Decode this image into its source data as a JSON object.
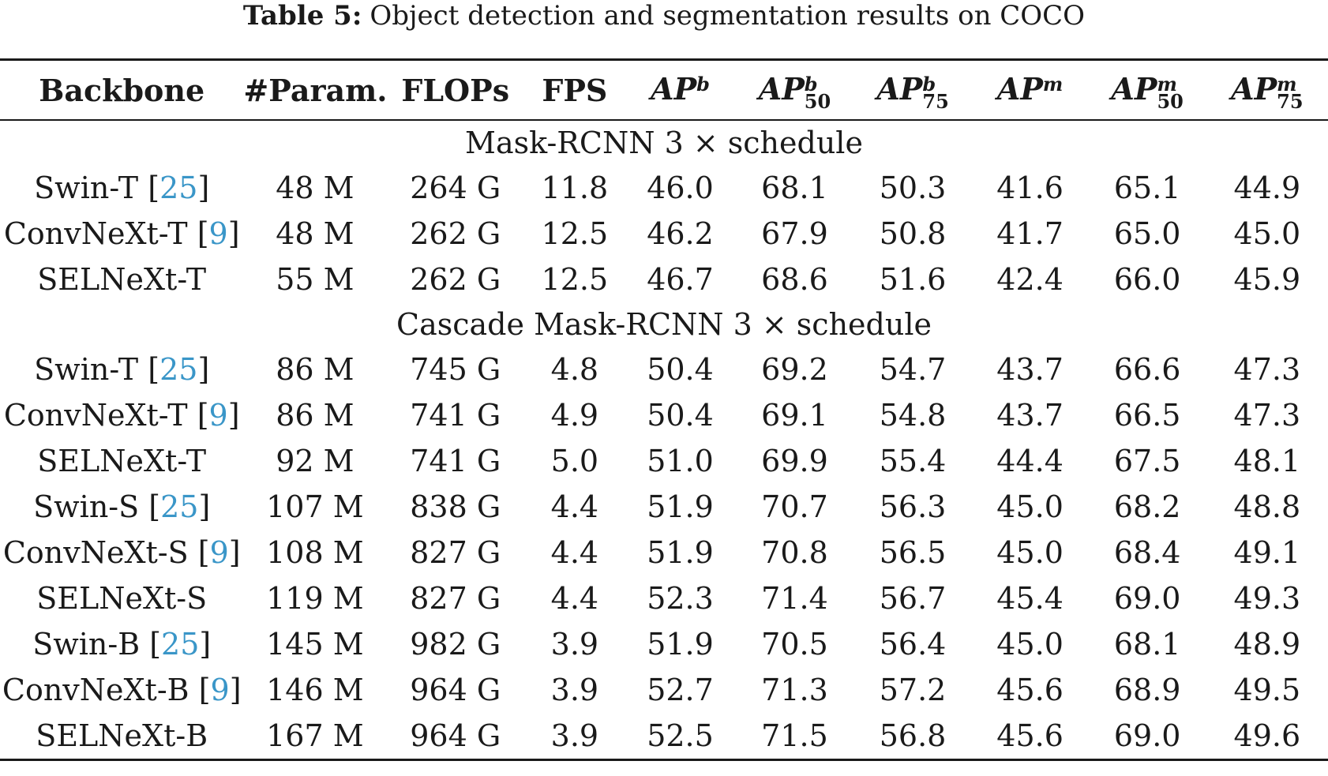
{
  "caption": {
    "label": "Table 5:",
    "text": "Object detection and segmentation results on COCO"
  },
  "header": {
    "backbone": "Backbone",
    "params": "#Param.",
    "flops": "FLOPs",
    "fps": "FPS",
    "ap_b": {
      "base": "AP",
      "sup": "b",
      "sub": ""
    },
    "ap_b50": {
      "base": "AP",
      "sup": "b",
      "sub": "50"
    },
    "ap_b75": {
      "base": "AP",
      "sup": "b",
      "sub": "75"
    },
    "ap_m": {
      "base": "AP",
      "sup": "m",
      "sub": ""
    },
    "ap_m50": {
      "base": "AP",
      "sup": "m",
      "sub": "50"
    },
    "ap_m75": {
      "base": "AP",
      "sup": "m",
      "sub": "75"
    }
  },
  "sections": [
    {
      "title": "Mask-RCNN 3 × schedule",
      "rows": [
        {
          "name": "Swin-T",
          "ref": "25",
          "params": "48 M",
          "flops": "264 G",
          "fps": "11.8",
          "ap_b": "46.0",
          "ap_b50": "68.1",
          "ap_b75": "50.3",
          "ap_m": "41.6",
          "ap_m50": "65.1",
          "ap_m75": "44.9"
        },
        {
          "name": "ConvNeXt-T",
          "ref": "9",
          "params": "48 M",
          "flops": "262 G",
          "fps": "12.5",
          "ap_b": "46.2",
          "ap_b50": "67.9",
          "ap_b75": "50.8",
          "ap_m": "41.7",
          "ap_m50": "65.0",
          "ap_m75": "45.0"
        },
        {
          "name": "SELNeXt-T",
          "ref": "",
          "params": "55 M",
          "flops": "262 G",
          "fps": "12.5",
          "ap_b": "46.7",
          "ap_b50": "68.6",
          "ap_b75": "51.6",
          "ap_m": "42.4",
          "ap_m50": "66.0",
          "ap_m75": "45.9"
        }
      ]
    },
    {
      "title": "Cascade Mask-RCNN 3 × schedule",
      "rows": [
        {
          "name": "Swin-T",
          "ref": "25",
          "params": "86 M",
          "flops": "745 G",
          "fps": "4.8",
          "ap_b": "50.4",
          "ap_b50": "69.2",
          "ap_b75": "54.7",
          "ap_m": "43.7",
          "ap_m50": "66.6",
          "ap_m75": "47.3"
        },
        {
          "name": "ConvNeXt-T",
          "ref": "9",
          "params": "86 M",
          "flops": "741 G",
          "fps": "4.9",
          "ap_b": "50.4",
          "ap_b50": "69.1",
          "ap_b75": "54.8",
          "ap_m": "43.7",
          "ap_m50": "66.5",
          "ap_m75": "47.3"
        },
        {
          "name": "SELNeXt-T",
          "ref": "",
          "params": "92 M",
          "flops": "741 G",
          "fps": "5.0",
          "ap_b": "51.0",
          "ap_b50": "69.9",
          "ap_b75": "55.4",
          "ap_m": "44.4",
          "ap_m50": "67.5",
          "ap_m75": "48.1"
        },
        {
          "name": "Swin-S",
          "ref": "25",
          "params": "107 M",
          "flops": "838 G",
          "fps": "4.4",
          "ap_b": "51.9",
          "ap_b50": "70.7",
          "ap_b75": "56.3",
          "ap_m": "45.0",
          "ap_m50": "68.2",
          "ap_m75": "48.8"
        },
        {
          "name": "ConvNeXt-S",
          "ref": "9",
          "params": "108 M",
          "flops": "827 G",
          "fps": "4.4",
          "ap_b": "51.9",
          "ap_b50": "70.8",
          "ap_b75": "56.5",
          "ap_m": "45.0",
          "ap_m50": "68.4",
          "ap_m75": "49.1"
        },
        {
          "name": "SELNeXt-S",
          "ref": "",
          "params": "119 M",
          "flops": "827 G",
          "fps": "4.4",
          "ap_b": "52.3",
          "ap_b50": "71.4",
          "ap_b75": "56.7",
          "ap_m": "45.4",
          "ap_m50": "69.0",
          "ap_m75": "49.3"
        },
        {
          "name": "Swin-B",
          "ref": "25",
          "params": "145 M",
          "flops": "982 G",
          "fps": "3.9",
          "ap_b": "51.9",
          "ap_b50": "70.5",
          "ap_b75": "56.4",
          "ap_m": "45.0",
          "ap_m50": "68.1",
          "ap_m75": "48.9"
        },
        {
          "name": "ConvNeXt-B",
          "ref": "9",
          "params": "146 M",
          "flops": "964 G",
          "fps": "3.9",
          "ap_b": "52.7",
          "ap_b50": "71.3",
          "ap_b75": "57.2",
          "ap_m": "45.6",
          "ap_m50": "68.9",
          "ap_m75": "49.5"
        },
        {
          "name": "SELNeXt-B",
          "ref": "",
          "params": "167 M",
          "flops": "964 G",
          "fps": "3.9",
          "ap_b": "52.5",
          "ap_b50": "71.5",
          "ap_b75": "56.8",
          "ap_m": "45.6",
          "ap_m50": "69.0",
          "ap_m75": "49.6"
        }
      ]
    }
  ],
  "colors": {
    "text": "#1a1a1a",
    "citation": "#3a96c8",
    "background": "#ffffff"
  }
}
